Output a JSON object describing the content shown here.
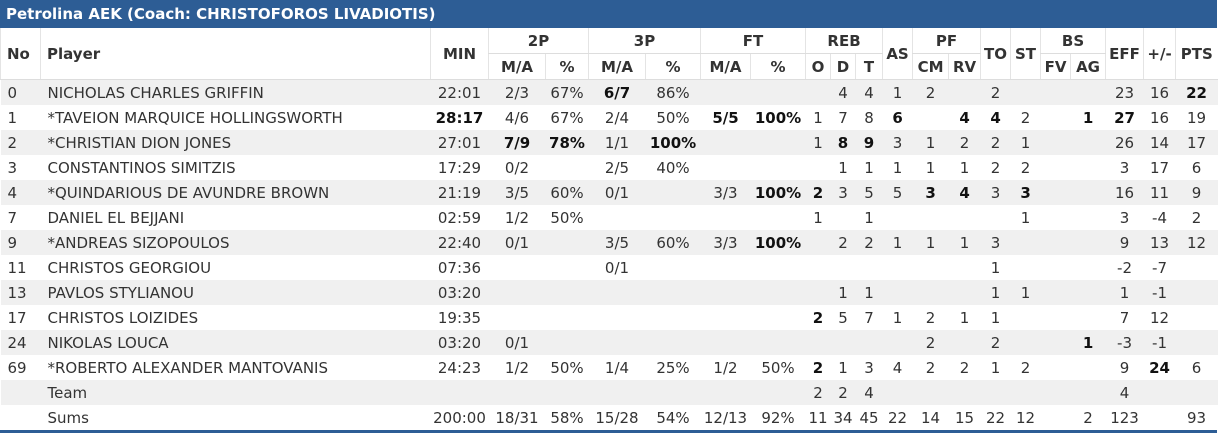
{
  "header": {
    "title": "Petrolina AEK (Coach: CHRISTOFOROS LIVADIOTIS)"
  },
  "table": {
    "groups": [
      "No",
      "Player",
      "MIN",
      "2P",
      "3P",
      "FT",
      "REB",
      "AS",
      "PF",
      "TO",
      "ST",
      "BS",
      "EFF",
      "+/-",
      "PTS"
    ],
    "subheaders": [
      "M/A",
      "%",
      "M/A",
      "%",
      "M/A",
      "%",
      "O",
      "D",
      "T",
      "CM",
      "RV",
      "FV",
      "AG"
    ],
    "rows": [
      [
        "0",
        "NICHOLAS CHARLES GRIFFIN",
        "22:01",
        "2/3",
        "67%",
        "6/7",
        "86%",
        null,
        null,
        null,
        "4",
        "4",
        "1",
        "2",
        null,
        "2",
        null,
        null,
        null,
        "23",
        "16",
        "22"
      ],
      [
        "1",
        "*TAVEION MARQUICE HOLLINGSWORTH",
        "28:17",
        "4/6",
        "67%",
        "2/4",
        "50%",
        "5/5",
        "100%",
        "1",
        "7",
        "8",
        "6",
        null,
        "4",
        "4",
        "2",
        null,
        "1",
        "27",
        "16",
        "19"
      ],
      [
        "2",
        "*CHRISTIAN DION JONES",
        "27:01",
        "7/9",
        "78%",
        "1/1",
        "100%",
        null,
        null,
        "1",
        "8",
        "9",
        "3",
        "1",
        "2",
        "2",
        "1",
        null,
        null,
        "26",
        "14",
        "17"
      ],
      [
        "3",
        "CONSTANTINOS SIMITZIS",
        "17:29",
        "0/2",
        null,
        "2/5",
        "40%",
        null,
        null,
        null,
        "1",
        "1",
        "1",
        "1",
        "1",
        "2",
        "2",
        null,
        null,
        "3",
        "17",
        "6"
      ],
      [
        "4",
        "*QUINDARIOUS DE AVUNDRE BROWN",
        "21:19",
        "3/5",
        "60%",
        "0/1",
        null,
        "3/3",
        "100%",
        "2",
        "3",
        "5",
        "5",
        "3",
        "4",
        "3",
        "3",
        null,
        null,
        "16",
        "11",
        "9"
      ],
      [
        "7",
        "DANIEL EL BEJJANI",
        "02:59",
        "1/2",
        "50%",
        null,
        null,
        null,
        null,
        "1",
        null,
        "1",
        null,
        null,
        null,
        null,
        "1",
        null,
        null,
        "3",
        "-4",
        "2"
      ],
      [
        "9",
        "*ANDREAS SIZOPOULOS",
        "22:40",
        "0/1",
        null,
        "3/5",
        "60%",
        "3/3",
        "100%",
        null,
        "2",
        "2",
        "1",
        "1",
        "1",
        "3",
        null,
        null,
        null,
        "9",
        "13",
        "12"
      ],
      [
        "11",
        "CHRISTOS GEORGIOU",
        "07:36",
        null,
        null,
        "0/1",
        null,
        null,
        null,
        null,
        null,
        null,
        null,
        null,
        null,
        "1",
        null,
        null,
        null,
        "-2",
        "-7",
        null
      ],
      [
        "13",
        "PAVLOS STYLIANOU",
        "03:20",
        null,
        null,
        null,
        null,
        null,
        null,
        null,
        "1",
        "1",
        null,
        null,
        null,
        "1",
        "1",
        null,
        null,
        "1",
        "-1",
        null
      ],
      [
        "17",
        "CHRISTOS LOIZIDES",
        "19:35",
        null,
        null,
        null,
        null,
        null,
        null,
        "2",
        "5",
        "7",
        "1",
        "2",
        "1",
        "1",
        null,
        null,
        null,
        "7",
        "12",
        null
      ],
      [
        "24",
        "NIKOLAS LOUCA",
        "03:20",
        "0/1",
        null,
        null,
        null,
        null,
        null,
        null,
        null,
        null,
        null,
        "2",
        null,
        "2",
        null,
        null,
        "1",
        "-3",
        "-1",
        null
      ],
      [
        "69",
        "*ROBERTO ALEXANDER MANTOVANIS",
        "24:23",
        "1/2",
        "50%",
        "1/4",
        "25%",
        "1/2",
        "50%",
        "2",
        "1",
        "3",
        "4",
        "2",
        "2",
        "1",
        "2",
        null,
        null,
        "9",
        "24",
        "6"
      ],
      [
        null,
        "Team",
        null,
        null,
        null,
        null,
        null,
        null,
        null,
        "2",
        "2",
        "4",
        null,
        null,
        null,
        null,
        null,
        null,
        null,
        "4",
        null,
        null
      ],
      [
        null,
        "Sums",
        "200:00",
        "18/31",
        "58%",
        "15/28",
        "54%",
        "12/13",
        "92%",
        "11",
        "34",
        "45",
        "22",
        "14",
        "15",
        "22",
        "12",
        null,
        "2",
        "123",
        null,
        "93"
      ]
    ],
    "bold": [
      [
        5,
        21
      ],
      [
        2,
        7,
        8,
        12,
        14,
        15,
        18,
        19
      ],
      [
        3,
        4,
        6,
        10,
        11
      ],
      [],
      [
        8,
        9,
        13,
        14,
        16
      ],
      [],
      [
        8
      ],
      [],
      [],
      [
        9
      ],
      [
        18
      ],
      [
        9,
        20
      ],
      [],
      []
    ]
  }
}
